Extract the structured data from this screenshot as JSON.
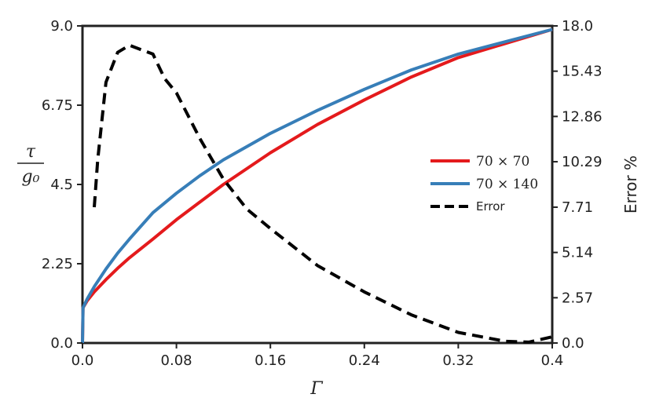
{
  "chart_data": {
    "type": "line",
    "xlabel": "Γ",
    "ylabel_left": {
      "numerator": "τ",
      "denominator": "g₀"
    },
    "ylabel_right": "Error %",
    "xlim": [
      0.0,
      0.4
    ],
    "ylim_left": [
      0.0,
      9.0
    ],
    "ylim_right": [
      0.0,
      18.0
    ],
    "x_ticks": [
      "0.0",
      "0.08",
      "0.16",
      "0.24",
      "0.32",
      "0.4"
    ],
    "x_tick_values": [
      0.0,
      0.08,
      0.16,
      0.24,
      0.32,
      0.4
    ],
    "y_left_ticks": [
      "0.0",
      "2.25",
      "4.5",
      "6.75",
      "9.0"
    ],
    "y_left_tick_values": [
      0.0,
      2.25,
      4.5,
      6.75,
      9.0
    ],
    "y_right_ticks": [
      "0.0",
      "2.57",
      "5.14",
      "7.71",
      "10.29",
      "12.86",
      "15.43",
      "18.0"
    ],
    "y_right_tick_values": [
      0.0,
      2.57,
      5.14,
      7.71,
      10.29,
      12.86,
      15.43,
      18.0
    ],
    "grid": false,
    "legend_position": "center-right",
    "series": [
      {
        "name": "70 × 70",
        "axis": "left",
        "color": "#e41a1c",
        "dash": "solid",
        "x": [
          0.0,
          0.0005,
          0.004,
          0.01,
          0.02,
          0.03,
          0.04,
          0.06,
          0.08,
          0.1,
          0.12,
          0.16,
          0.2,
          0.24,
          0.28,
          0.32,
          0.36,
          0.4
        ],
        "y": [
          0.0,
          1.0,
          1.2,
          1.45,
          1.8,
          2.12,
          2.42,
          2.95,
          3.5,
          4.0,
          4.5,
          5.4,
          6.2,
          6.9,
          7.55,
          8.1,
          8.5,
          8.9
        ]
      },
      {
        "name": "70 × 140",
        "axis": "left",
        "color": "#377eb8",
        "dash": "solid",
        "x": [
          0.0,
          0.0005,
          0.004,
          0.01,
          0.02,
          0.03,
          0.04,
          0.06,
          0.08,
          0.1,
          0.12,
          0.16,
          0.2,
          0.24,
          0.28,
          0.32,
          0.36,
          0.4
        ],
        "y": [
          0.0,
          1.0,
          1.25,
          1.6,
          2.1,
          2.55,
          2.95,
          3.7,
          4.25,
          4.75,
          5.2,
          5.95,
          6.6,
          7.2,
          7.75,
          8.2,
          8.55,
          8.9
        ]
      },
      {
        "name": "Error",
        "axis": "right",
        "color": "#000000",
        "dash": "dashed",
        "x": [
          0.01,
          0.013,
          0.02,
          0.03,
          0.04,
          0.06,
          0.07,
          0.08,
          0.1,
          0.12,
          0.14,
          0.16,
          0.2,
          0.24,
          0.28,
          0.32,
          0.36,
          0.38,
          0.4
        ],
        "y": [
          7.71,
          10.4,
          14.8,
          16.5,
          16.9,
          16.4,
          15.0,
          14.2,
          11.6,
          9.3,
          7.6,
          6.5,
          4.4,
          2.9,
          1.6,
          0.6,
          0.1,
          0.05,
          0.35
        ]
      }
    ]
  }
}
